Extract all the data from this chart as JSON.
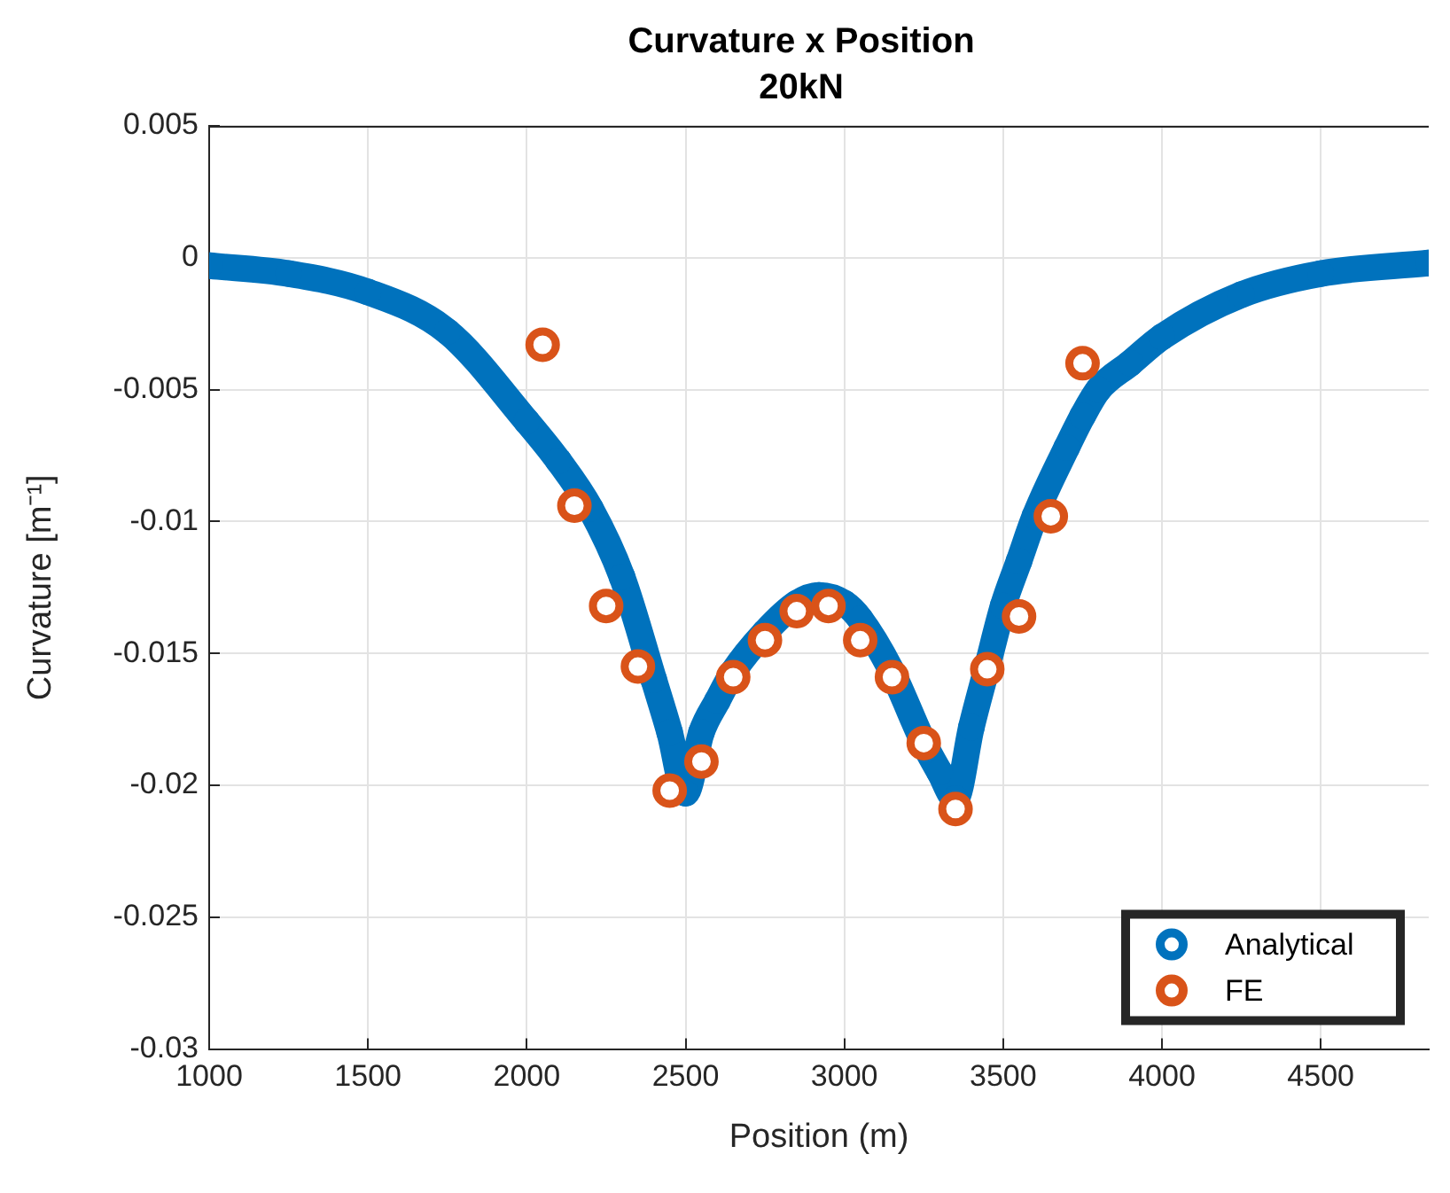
{
  "chart_data": {
    "type": "line",
    "title": "Curvature x Position",
    "subtitle": "20kN",
    "xlabel": "Position (m)",
    "ylabel": "Curvature [m⁻¹]",
    "xlim": [
      1000,
      4840
    ],
    "xticks": [
      1000,
      1500,
      2000,
      2500,
      3000,
      3500,
      4000,
      4500
    ],
    "ylim": [
      -0.03,
      0.005
    ],
    "yticks": [
      -0.03,
      -0.025,
      -0.02,
      -0.015,
      -0.01,
      -0.005,
      0,
      0.005
    ],
    "grid": true,
    "legend": "bottom right",
    "marker": "circle",
    "series": [
      {
        "name": "Analytical",
        "color": "#0072bd",
        "x": [
          1000,
          1250,
          1500,
          1750,
          2000,
          2100,
          2200,
          2300,
          2400,
          2450,
          2500,
          2550,
          2600,
          2650,
          2750,
          2850,
          2920,
          3000,
          3050,
          3150,
          3250,
          3300,
          3350,
          3400,
          3450,
          3500,
          3550,
          3600,
          3700,
          3750,
          3800,
          3900,
          4000,
          4250,
          4500,
          4840
        ],
        "values": [
          -0.0003,
          -0.0006,
          -0.0013,
          -0.0028,
          -0.0062,
          -0.0077,
          -0.0095,
          -0.0121,
          -0.016,
          -0.018,
          -0.0203,
          -0.018,
          -0.0168,
          -0.0157,
          -0.0142,
          -0.0131,
          -0.0128,
          -0.0131,
          -0.0137,
          -0.0157,
          -0.0184,
          -0.0195,
          -0.0205,
          -0.0178,
          -0.0155,
          -0.0132,
          -0.0115,
          -0.0098,
          -0.0072,
          -0.006,
          -0.005,
          -0.004,
          -0.003,
          -0.0014,
          -0.0006,
          -0.0002
        ]
      },
      {
        "name": "FE",
        "type": "scatter",
        "color": "#d95319",
        "x": [
          2050,
          2150,
          2250,
          2350,
          2450,
          2550,
          2650,
          2750,
          2850,
          2950,
          3050,
          3150,
          3250,
          3350,
          3450,
          3550,
          3650,
          3750
        ],
        "values": [
          -0.0033,
          -0.0094,
          -0.0132,
          -0.0155,
          -0.0202,
          -0.0191,
          -0.0159,
          -0.0145,
          -0.0134,
          -0.0132,
          -0.0145,
          -0.0159,
          -0.0184,
          -0.0209,
          -0.0156,
          -0.0136,
          -0.0098,
          -0.004
        ]
      }
    ]
  }
}
